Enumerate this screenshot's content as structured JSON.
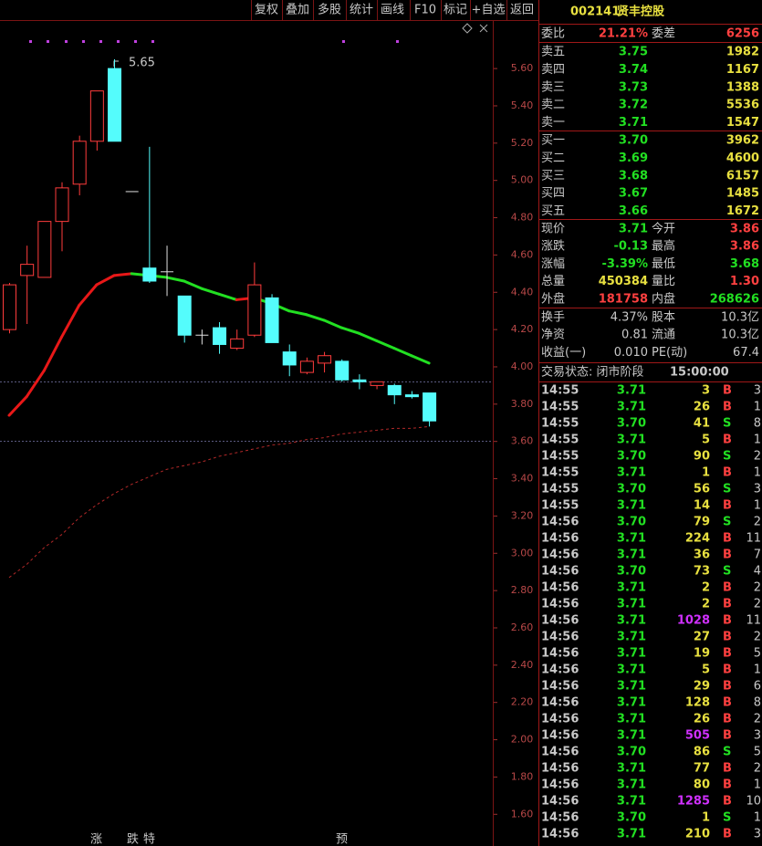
{
  "toolbar": [
    "复权",
    "叠加",
    "多股",
    "统计",
    "画线",
    "F10",
    "标记",
    "+自选",
    "返回"
  ],
  "chart_data": {
    "type": "candlestick",
    "open": [
      4.2,
      4.49,
      4.48,
      4.78,
      4.98,
      5.21,
      5.6,
      4.94,
      4.53,
      4.51,
      4.38,
      4.17,
      4.21,
      4.1,
      4.17,
      4.37,
      4.08,
      3.97,
      4.02,
      4.03,
      3.93,
      3.9,
      3.9,
      3.85,
      3.86
    ],
    "high": [
      4.45,
      4.65,
      4.78,
      4.99,
      5.24,
      5.48,
      5.65,
      4.94,
      5.18,
      4.65,
      4.38,
      4.2,
      4.24,
      4.2,
      4.56,
      4.39,
      4.12,
      4.05,
      4.08,
      4.04,
      3.96,
      3.92,
      3.91,
      3.87,
      3.86
    ],
    "low": [
      4.18,
      4.23,
      4.48,
      4.62,
      4.92,
      5.16,
      5.21,
      4.94,
      4.45,
      4.38,
      4.13,
      4.12,
      4.07,
      4.09,
      4.16,
      4.13,
      3.95,
      3.96,
      3.97,
      3.92,
      3.88,
      3.88,
      3.8,
      3.83,
      3.68
    ],
    "close": [
      4.44,
      4.55,
      4.78,
      4.96,
      5.21,
      5.48,
      5.21,
      4.94,
      4.46,
      4.51,
      4.17,
      4.17,
      4.12,
      4.15,
      4.44,
      4.13,
      4.01,
      4.03,
      4.06,
      3.93,
      3.92,
      3.92,
      3.85,
      3.84,
      3.71
    ],
    "up_color": "#ff3c3c",
    "down_color": "#54fcfc",
    "flat_color": "#e0e0e0",
    "high_label": "5.65",
    "ma_lines": [
      {
        "style": "solid",
        "rise_color": "#e81818",
        "fall_color": "#22e022",
        "values": [
          3.74,
          3.84,
          3.98,
          4.16,
          4.33,
          4.44,
          4.49,
          4.5,
          4.49,
          4.48,
          4.46,
          4.42,
          4.39,
          4.36,
          4.37,
          4.34,
          4.3,
          4.28,
          4.25,
          4.21,
          4.18,
          4.14,
          4.1,
          4.06,
          4.02
        ]
      },
      {
        "style": "dashed",
        "color": "#b02828",
        "values": [
          2.87,
          2.94,
          3.03,
          3.1,
          3.19,
          3.26,
          3.32,
          3.37,
          3.41,
          3.45,
          3.47,
          3.49,
          3.52,
          3.54,
          3.56,
          3.58,
          3.59,
          3.61,
          3.62,
          3.64,
          3.65,
          3.66,
          3.67,
          3.67,
          3.68
        ]
      }
    ],
    "ylim": [
      1.43,
      5.86
    ],
    "yticks": [
      {
        "value": 5.6,
        "label": "5.60"
      },
      {
        "value": 5.4,
        "label": "5.40"
      },
      {
        "value": 5.2,
        "label": "5.20"
      },
      {
        "value": 5.0,
        "label": "5.00"
      },
      {
        "value": 4.8,
        "label": "4.80"
      },
      {
        "value": 4.6,
        "label": "4.60"
      },
      {
        "value": 4.4,
        "label": "4.40"
      },
      {
        "value": 4.2,
        "label": "4.20"
      },
      {
        "value": 4.0,
        "label": "4.00"
      },
      {
        "value": 3.8,
        "label": "3.80"
      },
      {
        "value": 3.6,
        "label": "3.60"
      },
      {
        "value": 3.4,
        "label": "3.40"
      },
      {
        "value": 3.2,
        "label": "3.20"
      },
      {
        "value": 3.0,
        "label": "3.00"
      },
      {
        "value": 2.8,
        "label": "2.80"
      },
      {
        "value": 2.6,
        "label": "2.60"
      },
      {
        "value": 2.4,
        "label": "2.40"
      },
      {
        "value": 2.2,
        "label": "2.20"
      },
      {
        "value": 2.0,
        "label": "2.00"
      },
      {
        "value": 1.8,
        "label": "1.80"
      },
      {
        "value": 1.6,
        "label": "1.60"
      }
    ],
    "markers": [
      "涨",
      "跌",
      "特",
      "预"
    ]
  },
  "quote": {
    "code": "002141",
    "name": "贤丰控股",
    "summary": [
      "委比",
      "21.21%",
      "委差",
      "6256"
    ],
    "asks": [
      [
        "卖五",
        "3.75",
        "1982"
      ],
      [
        "卖四",
        "3.74",
        "1167"
      ],
      [
        "卖三",
        "3.73",
        "1388"
      ],
      [
        "卖二",
        "3.72",
        "5536"
      ],
      [
        "卖一",
        "3.71",
        "1547"
      ]
    ],
    "bids": [
      [
        "买一",
        "3.70",
        "3962"
      ],
      [
        "买二",
        "3.69",
        "4600"
      ],
      [
        "买三",
        "3.68",
        "6157"
      ],
      [
        "买四",
        "3.67",
        "1485"
      ],
      [
        "买五",
        "3.66",
        "1672"
      ]
    ],
    "stats": [
      [
        "现价",
        "3.71",
        "今开",
        "3.86"
      ],
      [
        "涨跌",
        "-0.13",
        "最高",
        "3.86"
      ],
      [
        "涨幅",
        "-3.39%",
        "最低",
        "3.68"
      ],
      [
        "总量",
        "450384",
        "量比",
        "1.30"
      ],
      [
        "外盘",
        "181758",
        "内盘",
        "268626"
      ]
    ],
    "fundamentals": [
      [
        "换手",
        "4.37%",
        "股本",
        "10.3亿"
      ],
      [
        "净资",
        "0.81",
        "流通",
        "10.3亿"
      ],
      [
        "收益(一)",
        "0.010",
        "PE(动)",
        "67.4"
      ]
    ],
    "status": [
      "交易状态: 闭市阶段",
      "15:00:00"
    ]
  },
  "trades": [
    [
      "14:55",
      "3.71",
      3,
      "B",
      3
    ],
    [
      "14:55",
      "3.71",
      26,
      "B",
      1
    ],
    [
      "14:55",
      "3.70",
      41,
      "S",
      8
    ],
    [
      "14:55",
      "3.71",
      5,
      "B",
      1
    ],
    [
      "14:55",
      "3.70",
      90,
      "S",
      2
    ],
    [
      "14:55",
      "3.71",
      1,
      "B",
      1
    ],
    [
      "14:55",
      "3.70",
      56,
      "S",
      3
    ],
    [
      "14:55",
      "3.71",
      14,
      "B",
      1
    ],
    [
      "14:56",
      "3.70",
      79,
      "S",
      2
    ],
    [
      "14:56",
      "3.71",
      224,
      "B",
      11
    ],
    [
      "14:56",
      "3.71",
      36,
      "B",
      7
    ],
    [
      "14:56",
      "3.70",
      73,
      "S",
      4
    ],
    [
      "14:56",
      "3.71",
      2,
      "B",
      2
    ],
    [
      "14:56",
      "3.71",
      2,
      "B",
      2
    ],
    [
      "14:56",
      "3.71",
      1028,
      "B",
      11
    ],
    [
      "14:56",
      "3.71",
      27,
      "B",
      2
    ],
    [
      "14:56",
      "3.71",
      19,
      "B",
      5
    ],
    [
      "14:56",
      "3.71",
      5,
      "B",
      1
    ],
    [
      "14:56",
      "3.71",
      29,
      "B",
      6
    ],
    [
      "14:56",
      "3.71",
      128,
      "B",
      8
    ],
    [
      "14:56",
      "3.71",
      26,
      "B",
      2
    ],
    [
      "14:56",
      "3.71",
      505,
      "B",
      3
    ],
    [
      "14:56",
      "3.70",
      86,
      "S",
      5
    ],
    [
      "14:56",
      "3.71",
      77,
      "B",
      2
    ],
    [
      "14:56",
      "3.71",
      80,
      "B",
      1
    ],
    [
      "14:56",
      "3.71",
      1285,
      "B",
      10
    ],
    [
      "14:56",
      "3.70",
      1,
      "S",
      1
    ],
    [
      "14:56",
      "3.71",
      210,
      "B",
      3
    ]
  ]
}
